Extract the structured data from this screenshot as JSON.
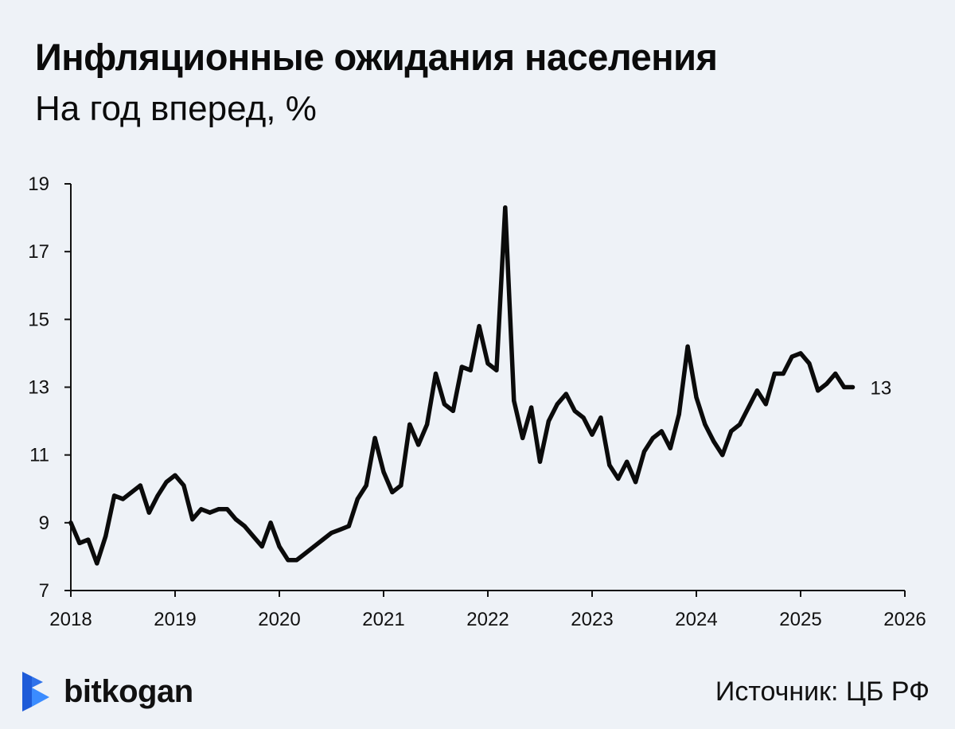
{
  "title": "Инфляционные ожидания населения",
  "subtitle": "На год вперед, %",
  "source": "Источник: ЦБ РФ",
  "logo": {
    "text": "bitkogan",
    "icon": "bitkogan-logo-icon",
    "colors": [
      "#1e5bd8",
      "#3b8cff"
    ]
  },
  "colors": {
    "background": "#eef2f7",
    "line": "#0b0b0b"
  },
  "chart_data": {
    "type": "line",
    "title": "Инфляционные ожидания населения",
    "subtitle": "На год вперед, %",
    "xlim": [
      2018,
      2026
    ],
    "ylim": [
      7,
      19
    ],
    "x_ticks": [
      "2018",
      "2019",
      "2020",
      "2021",
      "2022",
      "2023",
      "2024",
      "2025",
      "2026"
    ],
    "y_ticks": [
      "7",
      "9",
      "11",
      "13",
      "15",
      "17",
      "19"
    ],
    "grid": false,
    "end_label": "13",
    "series": [
      {
        "x": [
          "2018-01",
          "2018-02",
          "2018-03",
          "2018-04",
          "2018-05",
          "2018-06",
          "2018-07",
          "2018-08",
          "2018-09",
          "2018-10",
          "2018-11",
          "2018-12",
          "2019-01",
          "2019-02",
          "2019-03",
          "2019-04",
          "2019-05",
          "2019-06",
          "2019-07",
          "2019-08",
          "2019-09",
          "2019-10",
          "2019-11",
          "2019-12",
          "2020-01",
          "2020-02",
          "2020-03",
          "2020-04",
          "2020-05",
          "2020-06",
          "2020-07",
          "2020-08",
          "2020-09",
          "2020-10",
          "2020-11",
          "2020-12",
          "2021-01",
          "2021-02",
          "2021-03",
          "2021-04",
          "2021-05",
          "2021-06",
          "2021-07",
          "2021-08",
          "2021-09",
          "2021-10",
          "2021-11",
          "2021-12",
          "2022-01",
          "2022-02",
          "2022-03",
          "2022-04",
          "2022-05",
          "2022-06",
          "2022-07",
          "2022-08",
          "2022-09",
          "2022-10",
          "2022-11",
          "2022-12",
          "2023-01",
          "2023-02",
          "2023-03",
          "2023-04",
          "2023-05",
          "2023-06",
          "2023-07",
          "2023-08",
          "2023-09",
          "2023-10",
          "2023-11",
          "2023-12",
          "2024-01",
          "2024-02",
          "2024-03",
          "2024-04",
          "2024-05",
          "2024-06",
          "2024-07",
          "2024-08",
          "2024-09",
          "2024-10",
          "2024-11",
          "2024-12",
          "2025-01",
          "2025-02",
          "2025-03",
          "2025-04",
          "2025-05",
          "2025-06",
          "2025-07"
        ],
        "values": [
          9.0,
          8.4,
          8.5,
          7.8,
          8.6,
          9.8,
          9.7,
          9.9,
          10.1,
          9.3,
          9.8,
          10.2,
          10.4,
          10.1,
          9.1,
          9.4,
          9.3,
          9.4,
          9.4,
          9.1,
          8.9,
          8.6,
          8.3,
          9.0,
          8.3,
          7.9,
          7.9,
          8.1,
          8.3,
          8.5,
          8.7,
          8.8,
          8.9,
          9.7,
          10.1,
          11.5,
          10.5,
          9.9,
          10.1,
          11.9,
          11.3,
          11.9,
          13.4,
          12.5,
          12.3,
          13.6,
          13.5,
          14.8,
          13.7,
          13.5,
          18.3,
          12.6,
          11.5,
          12.4,
          10.8,
          12.0,
          12.5,
          12.8,
          12.3,
          12.1,
          11.6,
          12.1,
          10.7,
          10.3,
          10.8,
          10.2,
          11.1,
          11.5,
          11.7,
          11.2,
          12.2,
          14.2,
          12.7,
          11.9,
          11.4,
          11.0,
          11.7,
          11.9,
          12.4,
          12.9,
          12.5,
          13.4,
          13.4,
          13.9,
          14.0,
          13.7,
          12.9,
          13.1,
          13.4,
          13.0,
          13.0
        ]
      }
    ]
  }
}
